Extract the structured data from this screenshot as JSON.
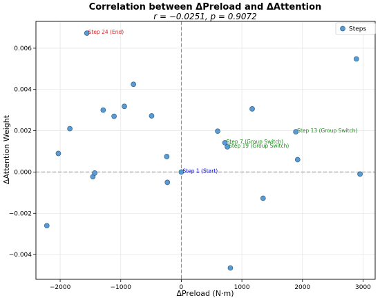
{
  "chart_data": {
    "type": "scatter",
    "title": "Correlation between ΔPreload and ΔAttention",
    "subtitle": "r = −0.0251, p = 0.9072",
    "xlabel": "ΔPreload (N·m)",
    "ylabel": "ΔAttention Weight",
    "xlim": [
      -2400,
      3200
    ],
    "ylim": [
      -0.0052,
      0.0073
    ],
    "xticks": [
      -2000,
      -1000,
      0,
      1000,
      2000,
      3000
    ],
    "xtick_labels": [
      "−2000",
      "−1000",
      "0",
      "1000",
      "2000",
      "3000"
    ],
    "yticks": [
      -0.004,
      -0.002,
      0.0,
      0.002,
      0.004,
      0.006
    ],
    "ytick_labels": [
      "−0.004",
      "−0.002",
      "0.000",
      "0.002",
      "0.004",
      "0.006"
    ],
    "grid": true,
    "reference_lines": {
      "x": 0,
      "y": 0
    },
    "legend": {
      "position": "top-right",
      "entries": [
        "Steps"
      ]
    },
    "series": [
      {
        "name": "Steps",
        "color": "#5a9bd5",
        "points": [
          {
            "x": -1560,
            "y": 0.00673
          },
          {
            "x": -2220,
            "y": -0.0026
          },
          {
            "x": -2030,
            "y": 0.0009
          },
          {
            "x": -1840,
            "y": 0.0021
          },
          {
            "x": -1460,
            "y": -0.00023
          },
          {
            "x": -1430,
            "y": -5e-05
          },
          {
            "x": -1290,
            "y": 0.003
          },
          {
            "x": -1110,
            "y": 0.0027
          },
          {
            "x": -940,
            "y": 0.00318
          },
          {
            "x": -790,
            "y": 0.00425
          },
          {
            "x": -490,
            "y": 0.00272
          },
          {
            "x": -240,
            "y": 0.00075
          },
          {
            "x": -230,
            "y": -0.0005
          },
          {
            "x": 0,
            "y": 0.0
          },
          {
            "x": 600,
            "y": 0.00198
          },
          {
            "x": 720,
            "y": 0.00142
          },
          {
            "x": 760,
            "y": 0.00122
          },
          {
            "x": 810,
            "y": -0.00465
          },
          {
            "x": 1170,
            "y": 0.00306
          },
          {
            "x": 1350,
            "y": -0.00127
          },
          {
            "x": 1890,
            "y": 0.00195
          },
          {
            "x": 1920,
            "y": 0.0006
          },
          {
            "x": 2890,
            "y": 0.00548
          },
          {
            "x": 2950,
            "y": -0.0001
          }
        ]
      }
    ],
    "annotations": [
      {
        "text": "Step 24 (End)",
        "x": -1560,
        "y": 0.00673,
        "color": "#e31a1c"
      },
      {
        "text": "Step 1 (Start)",
        "x": 0,
        "y": 0.0,
        "color": "#0000ee"
      },
      {
        "text": "Step 7 (Group Switch)",
        "x": 720,
        "y": 0.00142,
        "color": "#1a8a1a"
      },
      {
        "text": "Step 19 (Group Switch)",
        "x": 760,
        "y": 0.00122,
        "color": "#1a8a1a"
      },
      {
        "text": "Step 13 (Group Switch)",
        "x": 1890,
        "y": 0.00195,
        "color": "#1a8a1a"
      }
    ]
  }
}
